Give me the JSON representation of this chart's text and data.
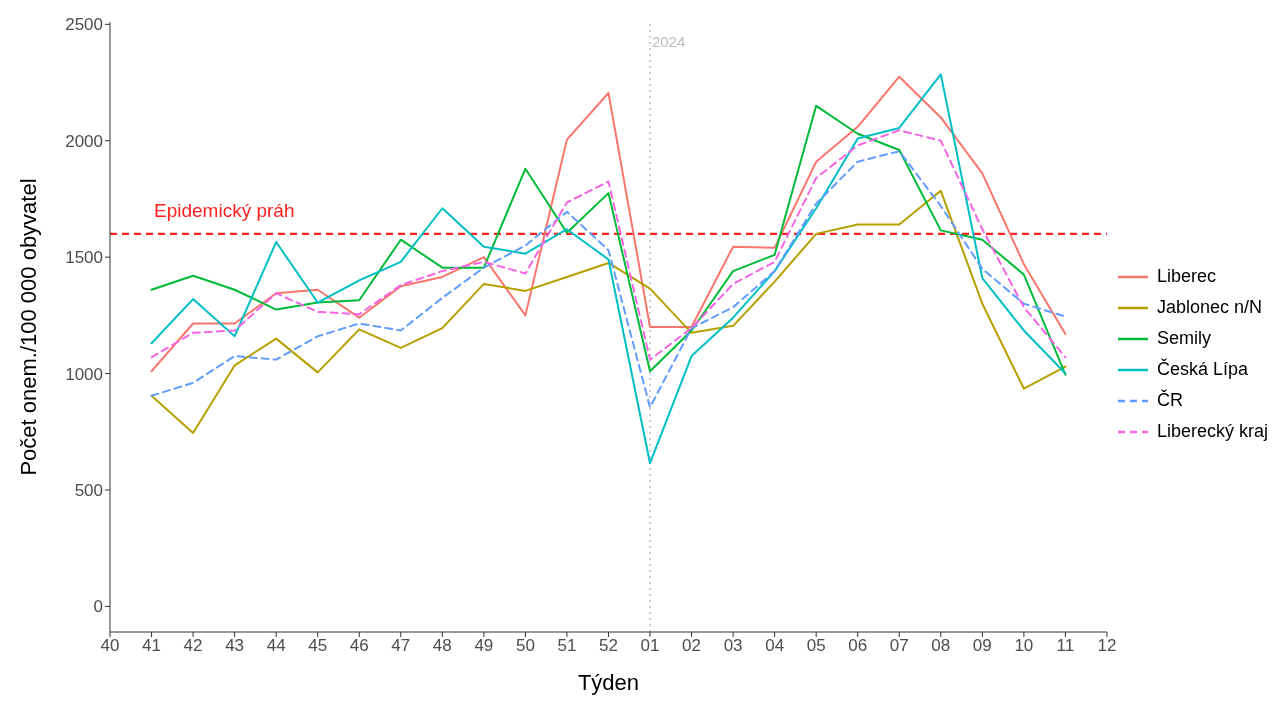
{
  "chart_data": {
    "type": "line",
    "xlabel": "Týden",
    "ylabel": "Počet onem./100 000 obyvatel",
    "categories": [
      "40",
      "41",
      "42",
      "43",
      "44",
      "45",
      "46",
      "47",
      "48",
      "49",
      "50",
      "51",
      "52",
      "01",
      "02",
      "03",
      "04",
      "05",
      "06",
      "07",
      "08",
      "09",
      "10",
      "11",
      "12"
    ],
    "series": [
      {
        "name": "Liberec",
        "color": "#f8766d",
        "line_style": "solid",
        "values": [
          null,
          1010,
          1215,
          1215,
          1345,
          1360,
          1240,
          1375,
          1415,
          1500,
          1250,
          2005,
          2205,
          1200,
          1200,
          1545,
          1540,
          1910,
          2060,
          2275,
          2100,
          1860,
          1470,
          1170,
          null
        ]
      },
      {
        "name": "Jablonec n/N",
        "color": "#b79f00",
        "line_style": "solid",
        "values": [
          null,
          905,
          745,
          1035,
          1150,
          1005,
          1190,
          1110,
          1195,
          1385,
          1355,
          1415,
          1475,
          1365,
          1175,
          1205,
          1395,
          1600,
          1640,
          1640,
          1785,
          1300,
          935,
          1030,
          null
        ]
      },
      {
        "name": "Semily",
        "color": "#00ba38",
        "line_style": "solid",
        "values": [
          null,
          1360,
          1420,
          1360,
          1275,
          1305,
          1315,
          1575,
          1455,
          1455,
          1880,
          1605,
          1775,
          1010,
          1185,
          1440,
          1510,
          2150,
          2030,
          1960,
          1615,
          1575,
          1425,
          995,
          null
        ]
      },
      {
        "name": "Česká Lípa",
        "color": "#00bfc4",
        "line_style": "solid",
        "values": [
          null,
          1130,
          1320,
          1160,
          1565,
          1305,
          1400,
          1480,
          1710,
          1545,
          1515,
          1620,
          1490,
          615,
          1075,
          1240,
          1440,
          1710,
          2010,
          2055,
          2285,
          1410,
          1185,
          1000,
          null
        ]
      },
      {
        "name": "ČR",
        "color": "#619cff",
        "line_style": "dashed",
        "values": [
          null,
          905,
          960,
          1075,
          1060,
          1160,
          1215,
          1185,
          1325,
          1455,
          1550,
          1695,
          1530,
          855,
          1195,
          1285,
          1440,
          1730,
          1910,
          1955,
          1720,
          1450,
          1300,
          1245,
          null
        ]
      },
      {
        "name": "Liberecký kraj",
        "color": "#f564e3",
        "line_style": "dashed",
        "values": [
          null,
          1070,
          1175,
          1185,
          1345,
          1265,
          1255,
          1380,
          1440,
          1480,
          1430,
          1735,
          1825,
          1060,
          1195,
          1385,
          1480,
          1840,
          1980,
          2045,
          2000,
          1620,
          1285,
          1070,
          null
        ]
      }
    ],
    "ylim": [
      -110,
      2510
    ],
    "yticks": [
      0,
      500,
      1000,
      1500,
      2000,
      2500
    ],
    "ref_lines": [
      {
        "axis": "y",
        "value": 1600,
        "label": "Epidemický práh",
        "color": "#ff2020",
        "line_style": "dashed"
      },
      {
        "axis": "x",
        "value": "01",
        "label": "2024",
        "color": "#bdbdbd",
        "line_style": "dotted"
      }
    ],
    "legend": "right"
  }
}
